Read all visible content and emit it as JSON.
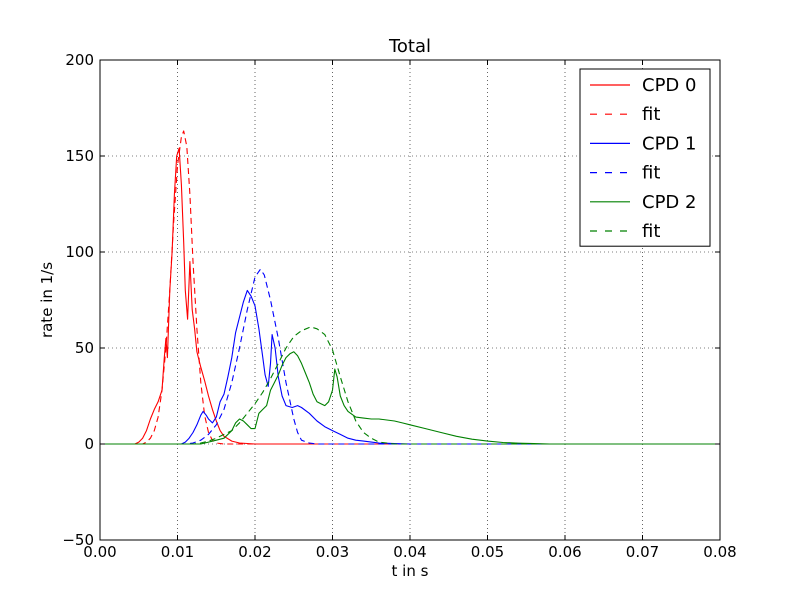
{
  "chart_data": {
    "type": "line",
    "title": "Total",
    "xlabel": "t in s",
    "ylabel": "rate in 1/s",
    "xlim": [
      0,
      0.08
    ],
    "ylim": [
      -50,
      200
    ],
    "xticks": [
      0.0,
      0.01,
      0.02,
      0.03,
      0.04,
      0.05,
      0.06,
      0.07,
      0.08
    ],
    "xtick_labels": [
      "0.00",
      "0.01",
      "0.02",
      "0.03",
      "0.04",
      "0.05",
      "0.06",
      "0.07",
      "0.08"
    ],
    "yticks": [
      -50,
      0,
      50,
      100,
      150,
      200
    ],
    "ytick_labels": [
      "−50",
      "0",
      "50",
      "100",
      "150",
      "200"
    ],
    "grid": true,
    "legend_position": "top-right",
    "series": [
      {
        "name": "CPD 0",
        "color": "#ff0000",
        "style": "solid",
        "points": [
          [
            0,
            0
          ],
          [
            0.0045,
            0
          ],
          [
            0.005,
            1
          ],
          [
            0.0055,
            3
          ],
          [
            0.006,
            7
          ],
          [
            0.0065,
            13
          ],
          [
            0.007,
            18
          ],
          [
            0.0075,
            22
          ],
          [
            0.008,
            28
          ],
          [
            0.0083,
            45
          ],
          [
            0.0085,
            55
          ],
          [
            0.0087,
            45
          ],
          [
            0.009,
            80
          ],
          [
            0.0093,
            100
          ],
          [
            0.0096,
            130
          ],
          [
            0.0099,
            150
          ],
          [
            0.0102,
            154
          ],
          [
            0.0105,
            135
          ],
          [
            0.0108,
            105
          ],
          [
            0.011,
            80
          ],
          [
            0.0113,
            65
          ],
          [
            0.0116,
            95
          ],
          [
            0.0119,
            70
          ],
          [
            0.0122,
            60
          ],
          [
            0.0125,
            48
          ],
          [
            0.013,
            40
          ],
          [
            0.0135,
            33
          ],
          [
            0.014,
            25
          ],
          [
            0.0145,
            18
          ],
          [
            0.015,
            12
          ],
          [
            0.0155,
            7
          ],
          [
            0.016,
            4
          ],
          [
            0.017,
            1.5
          ],
          [
            0.018,
            0.5
          ],
          [
            0.02,
            0
          ],
          [
            0.08,
            0
          ]
        ]
      },
      {
        "name": "fit",
        "color": "#ff0000",
        "style": "dashed",
        "points": [
          [
            0,
            0
          ],
          [
            0.0055,
            0
          ],
          [
            0.006,
            1
          ],
          [
            0.0065,
            3
          ],
          [
            0.007,
            7
          ],
          [
            0.0075,
            14
          ],
          [
            0.008,
            28
          ],
          [
            0.0085,
            50
          ],
          [
            0.009,
            80
          ],
          [
            0.0095,
            115
          ],
          [
            0.01,
            145
          ],
          [
            0.0105,
            160
          ],
          [
            0.0108,
            163
          ],
          [
            0.0112,
            155
          ],
          [
            0.0116,
            130
          ],
          [
            0.012,
            95
          ],
          [
            0.0125,
            60
          ],
          [
            0.013,
            32
          ],
          [
            0.0135,
            15
          ],
          [
            0.014,
            6
          ],
          [
            0.0145,
            2
          ],
          [
            0.015,
            0.5
          ],
          [
            0.016,
            0
          ],
          [
            0.08,
            0
          ]
        ]
      },
      {
        "name": "CPD 1",
        "color": "#0000ff",
        "style": "solid",
        "points": [
          [
            0,
            0
          ],
          [
            0.0105,
            0
          ],
          [
            0.011,
            1
          ],
          [
            0.0115,
            3
          ],
          [
            0.012,
            6
          ],
          [
            0.0125,
            10
          ],
          [
            0.013,
            15
          ],
          [
            0.0133,
            17
          ],
          [
            0.0137,
            15
          ],
          [
            0.014,
            13
          ],
          [
            0.0145,
            11
          ],
          [
            0.015,
            14
          ],
          [
            0.0155,
            22
          ],
          [
            0.016,
            26
          ],
          [
            0.0165,
            35
          ],
          [
            0.017,
            45
          ],
          [
            0.0175,
            58
          ],
          [
            0.018,
            66
          ],
          [
            0.0185,
            74
          ],
          [
            0.019,
            80
          ],
          [
            0.0195,
            77
          ],
          [
            0.02,
            72
          ],
          [
            0.0205,
            60
          ],
          [
            0.021,
            45
          ],
          [
            0.0213,
            36
          ],
          [
            0.0217,
            30
          ],
          [
            0.022,
            42
          ],
          [
            0.0222,
            57
          ],
          [
            0.0226,
            50
          ],
          [
            0.023,
            35
          ],
          [
            0.0235,
            25
          ],
          [
            0.024,
            20
          ],
          [
            0.0248,
            19
          ],
          [
            0.0255,
            20
          ],
          [
            0.026,
            19
          ],
          [
            0.027,
            16
          ],
          [
            0.028,
            12
          ],
          [
            0.029,
            9
          ],
          [
            0.03,
            7
          ],
          [
            0.031,
            5
          ],
          [
            0.032,
            3
          ],
          [
            0.033,
            2
          ],
          [
            0.034,
            1.5
          ],
          [
            0.035,
            1
          ],
          [
            0.036,
            0.5
          ],
          [
            0.038,
            0.2
          ],
          [
            0.04,
            0
          ],
          [
            0.08,
            0
          ]
        ]
      },
      {
        "name": "fit",
        "color": "#0000ff",
        "style": "dashed",
        "points": [
          [
            0,
            0
          ],
          [
            0.011,
            0
          ],
          [
            0.012,
            0.5
          ],
          [
            0.013,
            2
          ],
          [
            0.014,
            5
          ],
          [
            0.015,
            10
          ],
          [
            0.016,
            18
          ],
          [
            0.017,
            32
          ],
          [
            0.018,
            50
          ],
          [
            0.019,
            70
          ],
          [
            0.02,
            87
          ],
          [
            0.0207,
            91
          ],
          [
            0.0212,
            88
          ],
          [
            0.022,
            75
          ],
          [
            0.023,
            55
          ],
          [
            0.024,
            32
          ],
          [
            0.025,
            13
          ],
          [
            0.0255,
            6
          ],
          [
            0.026,
            2
          ],
          [
            0.027,
            0.5
          ],
          [
            0.028,
            0
          ],
          [
            0.08,
            0
          ]
        ]
      },
      {
        "name": "CPD 2",
        "color": "#008000",
        "style": "solid",
        "points": [
          [
            0,
            0
          ],
          [
            0.013,
            0
          ],
          [
            0.014,
            1
          ],
          [
            0.015,
            2
          ],
          [
            0.016,
            3
          ],
          [
            0.017,
            7
          ],
          [
            0.0175,
            11
          ],
          [
            0.018,
            13
          ],
          [
            0.0185,
            12
          ],
          [
            0.019,
            10
          ],
          [
            0.0195,
            8
          ],
          [
            0.02,
            8
          ],
          [
            0.0205,
            16
          ],
          [
            0.021,
            18
          ],
          [
            0.0215,
            20
          ],
          [
            0.022,
            28
          ],
          [
            0.0225,
            32
          ],
          [
            0.023,
            36
          ],
          [
            0.0235,
            41
          ],
          [
            0.024,
            45
          ],
          [
            0.0245,
            47
          ],
          [
            0.025,
            48
          ],
          [
            0.0255,
            46
          ],
          [
            0.026,
            42
          ],
          [
            0.0265,
            37
          ],
          [
            0.027,
            32
          ],
          [
            0.0275,
            26
          ],
          [
            0.028,
            22
          ],
          [
            0.0285,
            21
          ],
          [
            0.029,
            20
          ],
          [
            0.0295,
            22
          ],
          [
            0.03,
            28
          ],
          [
            0.0303,
            39
          ],
          [
            0.0306,
            35
          ],
          [
            0.031,
            25
          ],
          [
            0.0315,
            20
          ],
          [
            0.032,
            17
          ],
          [
            0.033,
            14
          ],
          [
            0.034,
            13.5
          ],
          [
            0.035,
            13
          ],
          [
            0.036,
            13
          ],
          [
            0.037,
            12.5
          ],
          [
            0.038,
            12
          ],
          [
            0.039,
            11
          ],
          [
            0.04,
            10
          ],
          [
            0.042,
            8
          ],
          [
            0.044,
            6
          ],
          [
            0.046,
            4
          ],
          [
            0.048,
            2.5
          ],
          [
            0.05,
            1.5
          ],
          [
            0.052,
            0.8
          ],
          [
            0.054,
            0.4
          ],
          [
            0.056,
            0.2
          ],
          [
            0.058,
            0
          ],
          [
            0.08,
            0
          ]
        ]
      },
      {
        "name": "fit",
        "color": "#008000",
        "style": "dashed",
        "points": [
          [
            0,
            0
          ],
          [
            0.012,
            0
          ],
          [
            0.013,
            0.5
          ],
          [
            0.014,
            1.5
          ],
          [
            0.015,
            3
          ],
          [
            0.016,
            5
          ],
          [
            0.017,
            7
          ],
          [
            0.018,
            11
          ],
          [
            0.019,
            16
          ],
          [
            0.02,
            21
          ],
          [
            0.021,
            27
          ],
          [
            0.022,
            34
          ],
          [
            0.023,
            42
          ],
          [
            0.024,
            50
          ],
          [
            0.025,
            56
          ],
          [
            0.026,
            59
          ],
          [
            0.0272,
            61
          ],
          [
            0.028,
            60
          ],
          [
            0.029,
            57
          ],
          [
            0.03,
            49
          ],
          [
            0.031,
            35
          ],
          [
            0.032,
            22
          ],
          [
            0.033,
            12
          ],
          [
            0.034,
            6
          ],
          [
            0.035,
            3
          ],
          [
            0.036,
            1
          ],
          [
            0.037,
            0.5
          ],
          [
            0.038,
            0
          ],
          [
            0.08,
            0
          ]
        ]
      }
    ]
  }
}
